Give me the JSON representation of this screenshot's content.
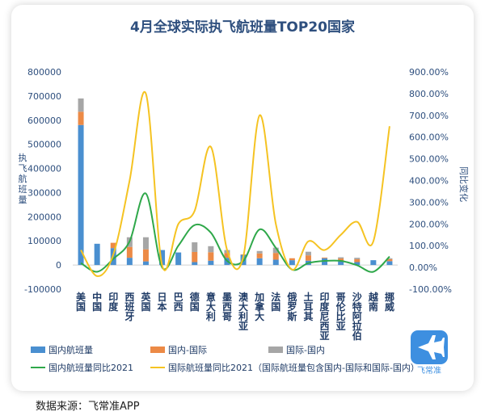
{
  "chart_data": {
    "type": "bar",
    "title": "4月全球实际执飞航班量TOP20国家",
    "ylabel": "执飞航班量",
    "y2label": "同比变化",
    "ylim": [
      -100000,
      800000
    ],
    "y2lim": [
      -100,
      900
    ],
    "yticks": [
      "800000",
      "700000",
      "600000",
      "500000",
      "400000",
      "300000",
      "200000",
      "100000",
      "0",
      "-100000"
    ],
    "y2ticks": [
      "900.00%",
      "800.00%",
      "700.00%",
      "600.00%",
      "500.00%",
      "400.00%",
      "300.00%",
      "200.00%",
      "100.00%",
      "0.00%",
      "-100.00%"
    ],
    "categories": [
      "美国",
      "中国",
      "印度",
      "西班牙",
      "英国",
      "日本",
      "巴西",
      "德国",
      "意大利",
      "墨西哥",
      "澳大利亚",
      "加拿大",
      "法国",
      "俄罗斯",
      "土耳其",
      "印度尼西亚",
      "哥伦比亚",
      "沙特阿拉伯",
      "越南",
      "挪威"
    ],
    "series": [
      {
        "name": "国内航班量",
        "kind": "bar",
        "color": "#4a8fd0",
        "values": [
          580000,
          88000,
          70000,
          30000,
          15000,
          62000,
          52000,
          12000,
          18000,
          30000,
          42000,
          28000,
          22000,
          20000,
          18000,
          28000,
          15000,
          12000,
          20000,
          16000
        ]
      },
      {
        "name": "国内-国际",
        "kind": "bar",
        "color": "#ec8a46",
        "values": [
          55000,
          0,
          22000,
          45000,
          50000,
          0,
          0,
          42000,
          35000,
          20000,
          2000,
          20000,
          28000,
          8000,
          22000,
          3000,
          12000,
          12000,
          0,
          8000
        ]
      },
      {
        "name": "国际-国内",
        "kind": "bar",
        "color": "#a6a6a6",
        "values": [
          55000,
          0,
          0,
          40000,
          50000,
          0,
          0,
          40000,
          25000,
          12000,
          0,
          10000,
          22000,
          0,
          15000,
          0,
          5000,
          6000,
          0,
          4000
        ]
      },
      {
        "name": "国内航班量同比2021",
        "kind": "line",
        "color": "#2fa84a",
        "axis": "right",
        "values": [
          20,
          -20,
          40,
          120,
          340,
          0,
          100,
          195,
          160,
          30,
          30,
          175,
          90,
          -10,
          20,
          30,
          30,
          10,
          -20,
          50
        ]
      },
      {
        "name": "国际航班量同比2021（国际航班量包含国内-国际和国际-国内）",
        "kind": "line",
        "color": "#f5c322",
        "axis": "right",
        "values": [
          80,
          -40,
          60,
          400,
          800,
          10,
          200,
          260,
          555,
          80,
          50,
          700,
          200,
          -10,
          120,
          80,
          150,
          210,
          120,
          650
        ]
      }
    ]
  },
  "legend": [
    {
      "label": "国内航班量",
      "color": "#4a8fd0",
      "kind": "bar"
    },
    {
      "label": "国内-国际",
      "color": "#ec8a46",
      "kind": "bar"
    },
    {
      "label": "国际-国内",
      "color": "#a6a6a6",
      "kind": "bar"
    },
    {
      "label": "国内航班量同比2021",
      "color": "#2fa84a",
      "kind": "line"
    },
    {
      "label": "国际航班量同比2021（国际航班量包含国内-国际和国际-国内）",
      "color": "#f5c322",
      "kind": "line"
    }
  ],
  "logo": {
    "label": "飞常准",
    "color": "#3d8fe0",
    "icon": "airplane-icon"
  },
  "source": "数据来源：飞常准APP"
}
